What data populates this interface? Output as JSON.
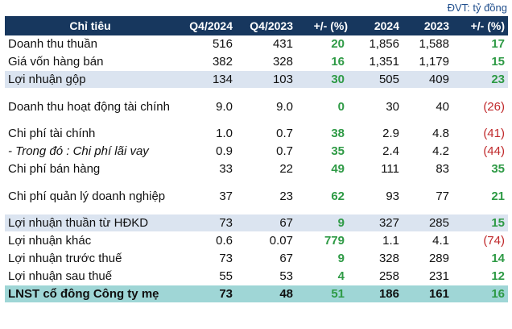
{
  "unit_label": "ĐVT: tỷ đồng",
  "header": [
    "Chỉ tiêu",
    "Q4/2024",
    "Q4/2023",
    "+/- (%)",
    "2024",
    "2023",
    "+/- (%)"
  ],
  "colors": {
    "header_bg": "#17375e",
    "highlight_bg": "#dbe4f0",
    "total_bg": "#9fd6d6",
    "positive": "#2e9a45",
    "negative": "#c0292b"
  },
  "rows": [
    {
      "label": "Doanh thu thuần",
      "q4_2024": "516",
      "q4_2023": "431",
      "q_change": "20",
      "y2024": "1,856",
      "y2023": "1,588",
      "y_change": "17",
      "style": "normal",
      "q_neg": false,
      "y_neg": false
    },
    {
      "label": "Giá vốn hàng bán",
      "q4_2024": "382",
      "q4_2023": "328",
      "q_change": "16",
      "y2024": "1,351",
      "y2023": "1,179",
      "y_change": "15",
      "style": "normal",
      "q_neg": false,
      "y_neg": false
    },
    {
      "label": "Lợi nhuận gộp",
      "q4_2024": "134",
      "q4_2023": "103",
      "q_change": "30",
      "y2024": "505",
      "y2023": "409",
      "y_change": "23",
      "style": "highlight",
      "q_neg": false,
      "y_neg": false
    },
    {
      "label": "Doanh thu hoạt động tài chính",
      "q4_2024": "9.0",
      "q4_2023": "9.0",
      "q_change": "0",
      "y2024": "30",
      "y2023": "40",
      "y_change": "(26)",
      "style": "twoline",
      "q_neg": false,
      "y_neg": true
    },
    {
      "label": "Chi phí tài chính",
      "q4_2024": "1.0",
      "q4_2023": "0.7",
      "q_change": "38",
      "y2024": "2.9",
      "y2023": "4.8",
      "y_change": "(41)",
      "style": "normal",
      "q_neg": false,
      "y_neg": true
    },
    {
      "label": "- Trong đó : Chi phí lãi vay",
      "q4_2024": "0.9",
      "q4_2023": "0.7",
      "q_change": "35",
      "y2024": "2.4",
      "y2023": "4.2",
      "y_change": "(44)",
      "style": "italic",
      "q_neg": false,
      "y_neg": true
    },
    {
      "label": "Chi phí bán hàng",
      "q4_2024": "33",
      "q4_2023": "22",
      "q_change": "49",
      "y2024": "111",
      "y2023": "83",
      "y_change": "35",
      "style": "normal",
      "q_neg": false,
      "y_neg": false
    },
    {
      "label": "Chi phí quản lý doanh nghiệp",
      "q4_2024": "37",
      "q4_2023": "23",
      "q_change": "62",
      "y2024": "93",
      "y2023": "77",
      "y_change": "21",
      "style": "twoline",
      "q_neg": false,
      "y_neg": false
    },
    {
      "label": "Lợi nhuận thuần từ HĐKD",
      "q4_2024": "73",
      "q4_2023": "67",
      "q_change": "9",
      "y2024": "327",
      "y2023": "285",
      "y_change": "15",
      "style": "highlight",
      "q_neg": false,
      "y_neg": false
    },
    {
      "label": "Lợi nhuận khác",
      "q4_2024": "0.6",
      "q4_2023": "0.07",
      "q_change": "779",
      "y2024": "1.1",
      "y2023": "4.1",
      "y_change": "(74)",
      "style": "normal",
      "q_neg": false,
      "y_neg": true
    },
    {
      "label": "Lợi nhuận trước thuế",
      "q4_2024": "73",
      "q4_2023": "67",
      "q_change": "9",
      "y2024": "328",
      "y2023": "289",
      "y_change": "14",
      "style": "normal",
      "q_neg": false,
      "y_neg": false
    },
    {
      "label": "Lợi nhuận sau thuế",
      "q4_2024": "55",
      "q4_2023": "53",
      "q_change": "4",
      "y2024": "258",
      "y2023": "231",
      "y_change": "12",
      "style": "normal",
      "q_neg": false,
      "y_neg": false
    },
    {
      "label": "LNST cổ đông Công ty mẹ",
      "q4_2024": "73",
      "q4_2023": "48",
      "q_change": "51",
      "y2024": "186",
      "y2023": "161",
      "y_change": "16",
      "style": "total",
      "q_neg": false,
      "y_neg": false
    }
  ]
}
